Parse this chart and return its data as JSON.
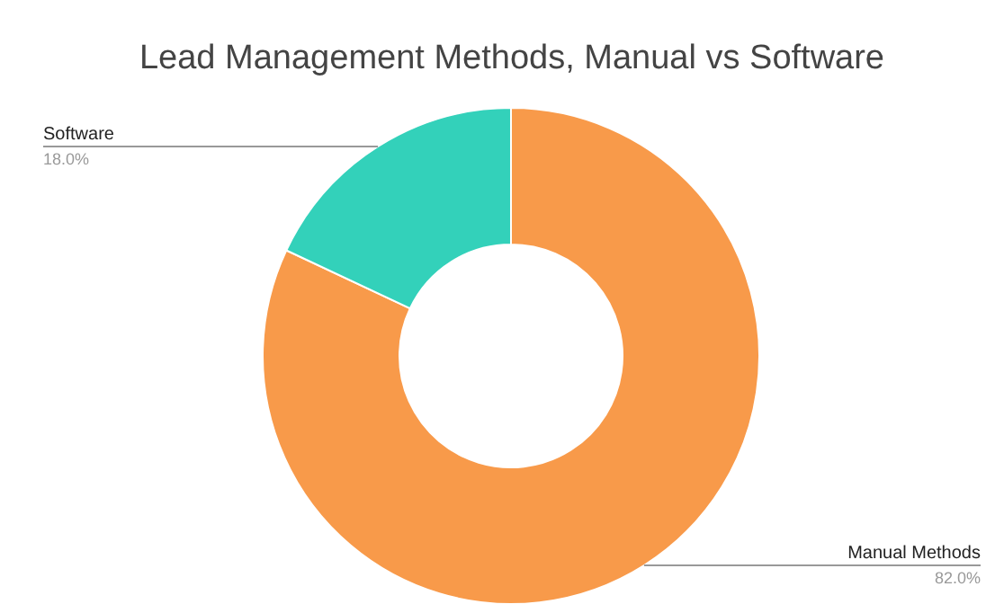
{
  "chart_data": {
    "type": "donut",
    "title": "Lead Management Methods, Manual vs Software",
    "categories": [
      "Manual Methods",
      "Software"
    ],
    "values": [
      82,
      18
    ],
    "colors": [
      "#f89a4a",
      "#33d1ba"
    ],
    "value_labels": [
      "82.0%",
      "18.0%"
    ]
  }
}
